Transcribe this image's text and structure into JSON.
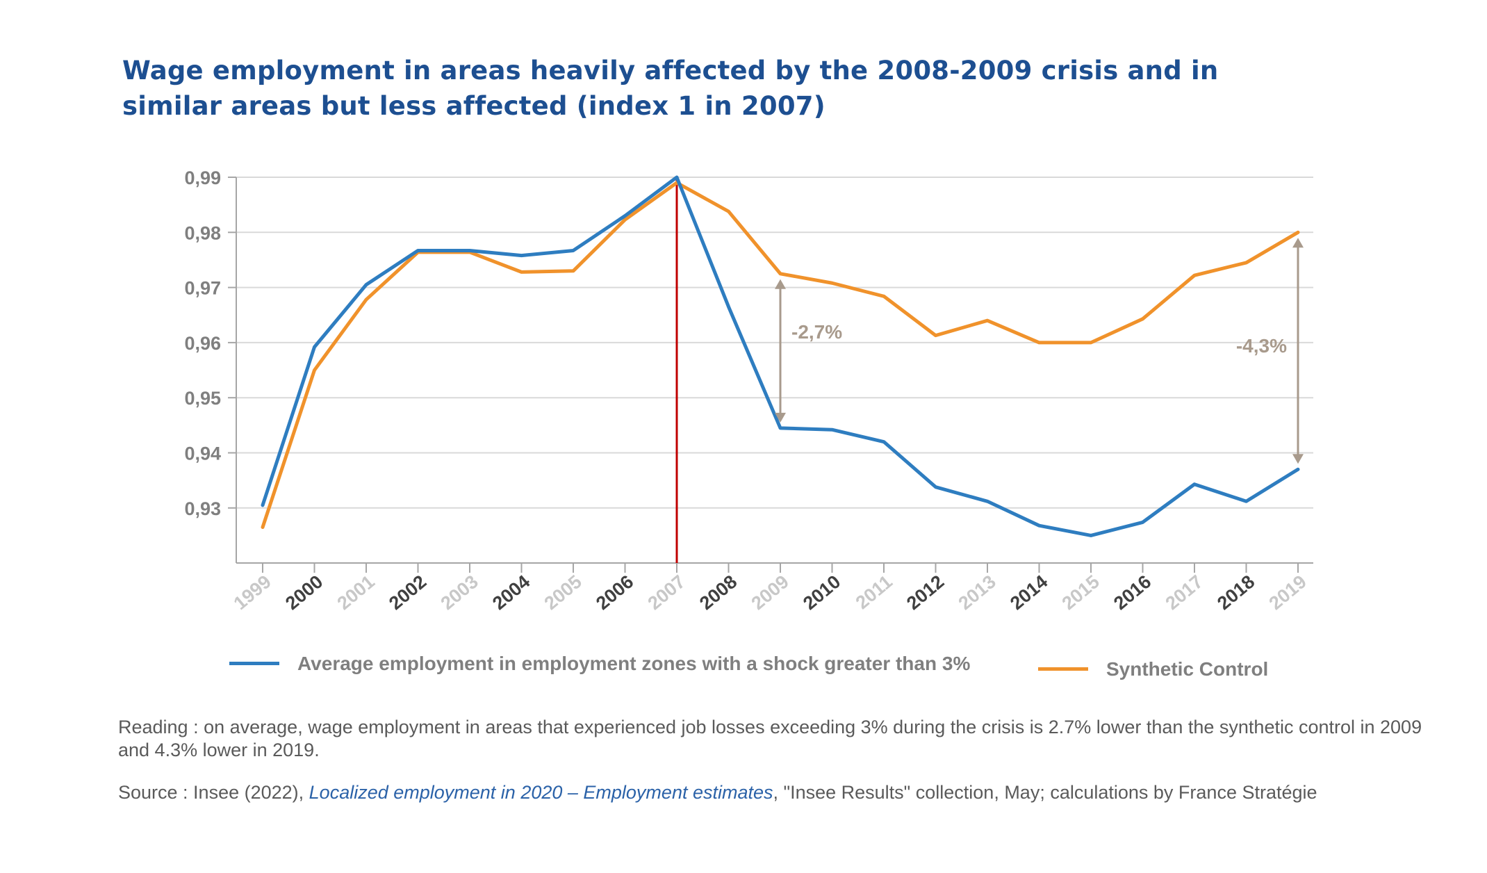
{
  "title_lines": [
    "Wage employment in areas heavily affected by the 2008-2009 crisis and in",
    "similar areas but less affected (index 1 in 2007)"
  ],
  "chart_data": {
    "type": "line",
    "x": [
      "1999",
      "2000",
      "2001",
      "2002",
      "2003",
      "2004",
      "2005",
      "2006",
      "2007",
      "2008",
      "2009",
      "2010",
      "2011",
      "2012",
      "2013",
      "2014",
      "2015",
      "2016",
      "2017",
      "2018",
      "2019"
    ],
    "ylim": [
      0.92,
      0.99
    ],
    "yticks": [
      "0,99",
      "0,98",
      "0,97",
      "0,96",
      "0,95",
      "0,94",
      "0,93"
    ],
    "ytick_values": [
      0.99,
      0.98,
      0.97,
      0.96,
      0.95,
      0.94,
      0.93
    ],
    "grid": true,
    "series": [
      {
        "name": "Average employment in employment zones with a shock greater than 3%",
        "color": "#2e7dc0",
        "values": [
          0.9305,
          0.9592,
          0.9705,
          0.9767,
          0.9767,
          0.9758,
          0.9767,
          0.983,
          0.99,
          0.9665,
          0.9445,
          0.9442,
          0.942,
          0.9338,
          0.9312,
          0.9268,
          0.925,
          0.9274,
          0.9343,
          0.9312,
          0.937
        ]
      },
      {
        "name": "Synthetic Control",
        "color": "#f0922b",
        "values": [
          0.9265,
          0.955,
          0.9678,
          0.9764,
          0.9764,
          0.9728,
          0.973,
          0.9823,
          0.989,
          0.9838,
          0.9725,
          0.9708,
          0.9684,
          0.9613,
          0.964,
          0.96,
          0.96,
          0.9643,
          0.9722,
          0.9745,
          0.98
        ]
      }
    ],
    "vline": {
      "x": "2007",
      "color": "#c00000"
    },
    "annotations": [
      {
        "x": "2009",
        "from": 0.9445,
        "to": 0.9725,
        "label": "-2,7%"
      },
      {
        "x": "2019",
        "from": 0.937,
        "to": 0.98,
        "label": "-4,3%"
      }
    ],
    "legend_placement": "bottom"
  },
  "legend": {
    "blue_label": "Average employment in employment zones with a shock greater than 3%",
    "orange_label": "Synthetic Control"
  },
  "reading": "Reading : on average, wage employment in areas that experienced job losses exceeding 3% during the crisis is 2.7% lower than the synthetic control in 2009 and 4.3% lower in 2019.",
  "source": {
    "prefix": "Source : Insee (2022), ",
    "title": "Localized employment in 2020 – Employment estimates",
    "suffix": ", \"Insee Results\" collection, May; calculations by France Stratégie"
  },
  "colors": {
    "title": "#1d4f91",
    "annotation": "#a89a8c"
  }
}
